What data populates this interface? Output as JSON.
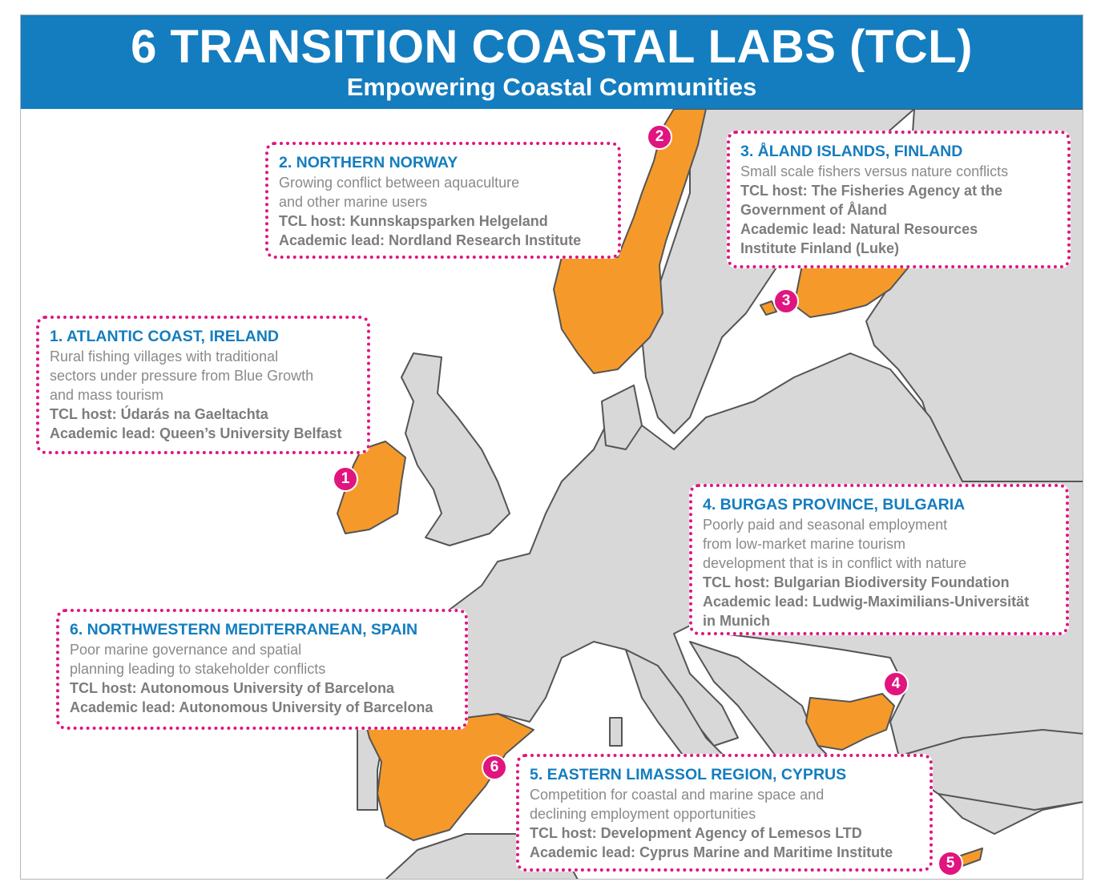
{
  "header": {
    "title": "6 TRANSITION COASTAL LABS (TCL)",
    "subtitle": "Empowering Coastal Communities"
  },
  "colors": {
    "header_blue": "#147dbf",
    "highlight_pink": "#e0157f",
    "lab_region_orange": "#f59a2a",
    "land_grey": "#d9d8d9"
  },
  "labs": [
    {
      "marker": "1",
      "heading": "1. ATLANTIC COAST, IRELAND",
      "description": [
        "Rural fishing villages with traditional",
        "sectors under pressure from Blue Growth",
        "and mass tourism"
      ],
      "host": [
        "TCL host: Údarás na Gaeltachta"
      ],
      "lead": [
        "Academic lead: Queen’s University Belfast"
      ]
    },
    {
      "marker": "2",
      "heading": "2. NORTHERN NORWAY",
      "description": [
        "Growing conflict between aquaculture",
        "and other marine users"
      ],
      "host": [
        "TCL host: Kunnskapsparken Helgeland"
      ],
      "lead": [
        "Academic lead: Nordland Research Institute"
      ]
    },
    {
      "marker": "3",
      "heading": "3. ÅLAND ISLANDS, FINLAND",
      "description": [
        "Small scale fishers versus nature conflicts"
      ],
      "host": [
        "TCL host: The Fisheries Agency at the",
        "Government of Åland"
      ],
      "lead": [
        "Academic lead: Natural Resources",
        "Institute Finland (Luke)"
      ]
    },
    {
      "marker": "4",
      "heading": "4. BURGAS PROVINCE, BULGARIA",
      "description": [
        "Poorly paid and seasonal employment",
        "from low-market marine tourism",
        "development that is in conflict with nature"
      ],
      "host": [
        "TCL host: Bulgarian Biodiversity Foundation"
      ],
      "lead": [
        "Academic lead: Ludwig-Maximilians-Universität",
        "in Munich"
      ]
    },
    {
      "marker": "5",
      "heading": "5. EASTERN LIMASSOL REGION, CYPRUS",
      "description": [
        "Competition for coastal and marine space and",
        "declining employment opportunities"
      ],
      "host": [
        "TCL host: Development Agency of Lemesos LTD"
      ],
      "lead": [
        "Academic lead: Cyprus Marine and Maritime Institute"
      ]
    },
    {
      "marker": "6",
      "heading": "6. NORTHWESTERN MEDITERRANEAN, SPAIN",
      "description": [
        "Poor marine governance and spatial",
        "planning leading to stakeholder conflicts"
      ],
      "host": [
        "TCL host: Autonomous University of Barcelona"
      ],
      "lead": [
        "Academic lead: Autonomous University of Barcelona"
      ]
    }
  ]
}
